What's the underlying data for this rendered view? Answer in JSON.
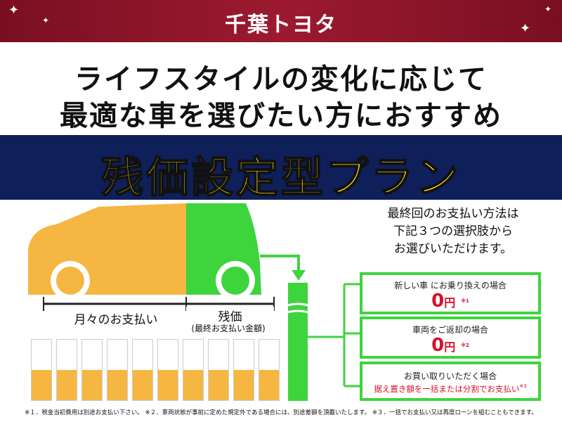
{
  "header": {
    "logo": "千葉トヨタ"
  },
  "headline": {
    "line1": "ライフスタイルの変化に応じて",
    "line2": "最適な車を選びたい方におすすめ"
  },
  "plan_title": "残価設定型プラン",
  "diagram": {
    "monthly_label": "月々のお支払い",
    "residual_label": "残価",
    "residual_sub": "(最終お支払い金額)",
    "monthly_color": "#f6b642",
    "residual_color": "#3ed43e"
  },
  "intro": {
    "line1": "最終回のお支払い方法は",
    "line2": "下記３つの選択肢から",
    "line3": "お選びいただけます。"
  },
  "options": [
    {
      "title": "新しい車 にお乗り換えの場合",
      "amount": "0",
      "unit": "円",
      "note": "※1"
    },
    {
      "title": "車両をご返却の場合",
      "amount": "0",
      "unit": "円",
      "note": "※2"
    },
    {
      "title": "お買い取りいただく場合",
      "detail": "据え置き額を一括または分割でお支払い",
      "note": "※3"
    }
  ],
  "footnote": "※１．税金当初費用は別途お支払い下さい。 ※２．車両状態が事前に定めた規定外である場合には、別途差額を頂戴いたします。 ※３．一括でお支払い又は再度ローンを組むこともできます。"
}
